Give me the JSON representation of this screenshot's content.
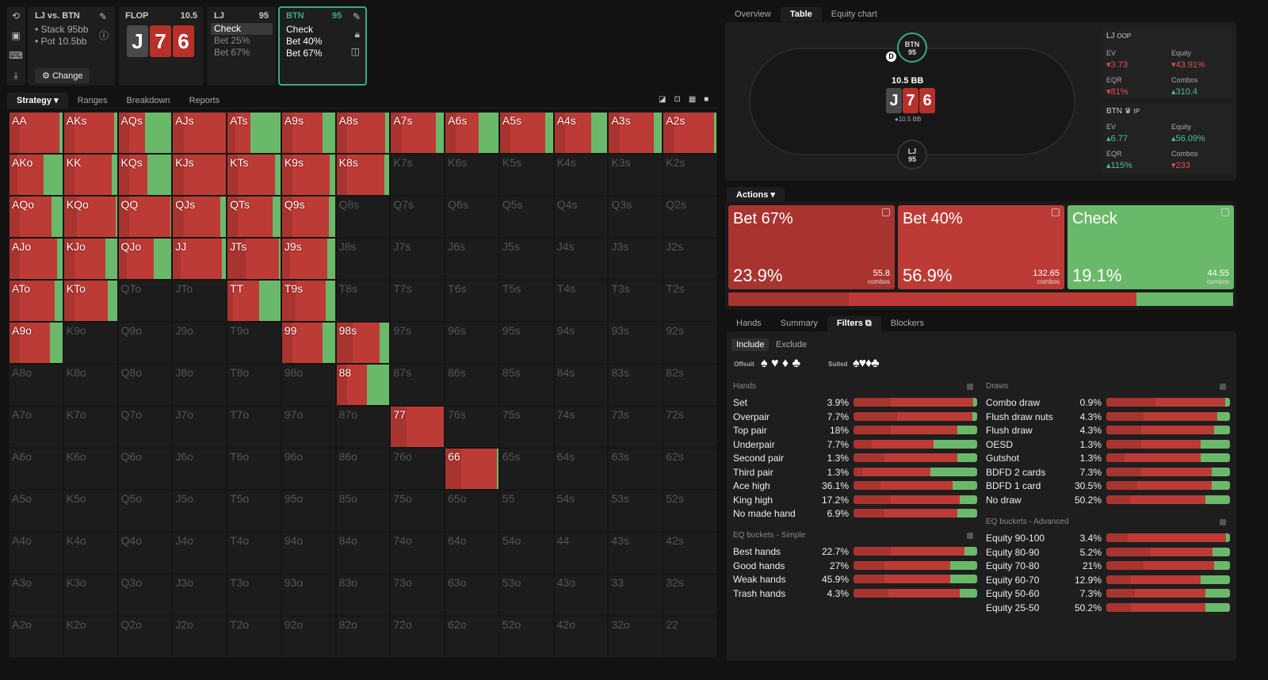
{
  "toolbar": {
    "icons": [
      "reset-icon",
      "save-icon",
      "gamepad-icon",
      "collapse-icon"
    ],
    "glyphs": [
      "⟲",
      "▣",
      "⌨",
      "⤓"
    ]
  },
  "spot": {
    "title": "LJ vs. BTN",
    "stack": "• Stack 95bb",
    "pot": "• Pot 10.5bb",
    "change": "Change",
    "gear": "⚙"
  },
  "flop": {
    "label": "FLOP",
    "pot": "10.5",
    "cards": [
      {
        "rank": "J",
        "suit": "spade",
        "color": "#4a4a4a"
      },
      {
        "rank": "7",
        "suit": "heart",
        "color": "#b8302a"
      },
      {
        "rank": "6",
        "suit": "heart",
        "color": "#b8302a"
      }
    ]
  },
  "lj": {
    "label": "LJ",
    "stack": "95",
    "options": [
      "Check",
      "Bet 25%",
      "Bet 67%"
    ]
  },
  "btn": {
    "label": "BTN",
    "stack": "95",
    "options": [
      "Check",
      "Bet 40%",
      "Bet 67%"
    ]
  },
  "left_tabs": [
    "Strategy ▾",
    "Ranges",
    "Breakdown",
    "Reports"
  ],
  "right_tabs": [
    "Overview",
    "Table",
    "Equity chart"
  ],
  "table": {
    "btn_seat": "BTN",
    "btn_stack": "95",
    "dealer": "D",
    "pot": "10.5 BB",
    "chips": "10.5 BB",
    "lj_seat": "LJ",
    "lj_stack": "95"
  },
  "stats": {
    "oop": {
      "title": "LJ",
      "tag": "OOP",
      "ev_label": "EV",
      "ev": "▾3.73",
      "eq_label": "Equity",
      "eq": "▾43.91%",
      "eqr_label": "EQR",
      "eqr": "▾81%",
      "combos_label": "Combos",
      "combos": "▴310.4"
    },
    "ip": {
      "title": "BTN ♛",
      "tag": "IP",
      "ev_label": "EV",
      "ev": "▴6.77",
      "eq_label": "Equity",
      "eq": "▴56.09%",
      "eqr_label": "EQR",
      "eqr": "▴115%",
      "combos_label": "Combos",
      "combos": "▾233"
    }
  },
  "actions": {
    "tab": "Actions ▾",
    "items": [
      {
        "name": "Bet 67%",
        "pct": "23.9%",
        "combos": "55.8",
        "unit": "combos",
        "color": "#a83430",
        "frac": 0.239
      },
      {
        "name": "Bet 40%",
        "pct": "56.9%",
        "combos": "132.65",
        "unit": "combos",
        "color": "#bd3b36",
        "frac": 0.569
      },
      {
        "name": "Check",
        "pct": "19.1%",
        "combos": "44.55",
        "unit": "combos",
        "color": "#6ab96a",
        "frac": 0.191
      }
    ]
  },
  "bottom_tabs": [
    "Hands",
    "Summary",
    "Filters ⧉",
    "Blockers"
  ],
  "filters": {
    "include": "Include",
    "exclude": "Exclude",
    "offsuit": "Offsuit",
    "offsuit_suits": "♠ ♥ ♦ ♣",
    "suited": "Suited",
    "suited_suits": "♠♥♦♣",
    "hands_title": "Hands",
    "draws_title": "Draws",
    "eq_simple_title": "EQ buckets - Simple",
    "eq_adv_title": "EQ buckets - Advanced",
    "hands": [
      [
        "Set",
        "3.9%",
        0.3,
        0.03
      ],
      [
        "Overpair",
        "7.7%",
        0.35,
        0.04
      ],
      [
        "Top pair",
        "18%",
        0.3,
        0.16
      ],
      [
        "Underpair",
        "7.7%",
        0.15,
        0.35
      ],
      [
        "Second pair",
        "1.3%",
        0.25,
        0.16
      ],
      [
        "Third pair",
        "1.3%",
        0.07,
        0.38
      ],
      [
        "Ace high",
        "36.1%",
        0.22,
        0.2
      ],
      [
        "King high",
        "17.2%",
        0.3,
        0.14
      ],
      [
        "No made hand",
        "6.9%",
        0.25,
        0.16
      ]
    ],
    "eq_simple": [
      [
        "Best hands",
        "22.7%",
        0.3,
        0.1
      ],
      [
        "Good hands",
        "27%",
        0.25,
        0.22
      ],
      [
        "Weak hands",
        "45.9%",
        0.25,
        0.22
      ],
      [
        "Trash hands",
        "4.3%",
        0.28,
        0.14
      ]
    ],
    "draws": [
      [
        "Combo draw",
        "0.9%",
        0.4,
        0.04
      ],
      [
        "Flush draw nuts",
        "4.3%",
        0.3,
        0.1
      ],
      [
        "Flush draw",
        "4.3%",
        0.28,
        0.13
      ],
      [
        "OESD",
        "1.3%",
        0.28,
        0.24
      ],
      [
        "Gutshot",
        "1.3%",
        0.15,
        0.24
      ],
      [
        "BDFD 2 cards",
        "7.3%",
        0.28,
        0.15
      ],
      [
        "BDFD 1 card",
        "30.5%",
        0.25,
        0.15
      ],
      [
        "No draw",
        "50.2%",
        0.2,
        0.2
      ]
    ],
    "eq_adv": [
      [
        "Equity 90-100",
        "3.4%",
        0.17,
        0.03
      ],
      [
        "Equity 80-90",
        "5.2%",
        0.35,
        0.14
      ],
      [
        "Equity 70-80",
        "21%",
        0.3,
        0.13
      ],
      [
        "Equity 60-70",
        "12.9%",
        0.2,
        0.24
      ],
      [
        "Equity 50-60",
        "7.3%",
        0.23,
        0.2
      ],
      [
        "Equity 25-50",
        "50.2%",
        0.2,
        0.2
      ]
    ]
  },
  "grid": {
    "ranks": [
      "A",
      "K",
      "Q",
      "J",
      "T",
      "9",
      "8",
      "7",
      "6",
      "5",
      "4",
      "3",
      "2"
    ],
    "strategy": {
      "AA": [
        0.2,
        0.06
      ],
      "AKs": [
        0.2,
        0.05
      ],
      "AQs": [
        0.2,
        0.5
      ],
      "AJs": [
        0.2,
        0
      ],
      "ATs": [
        0.15,
        0.57
      ],
      "A9s": [
        0.2,
        0.23
      ],
      "A8s": [
        0.2,
        0.08
      ],
      "A7s": [
        0.2,
        0.15
      ],
      "A6s": [
        0.2,
        0.37
      ],
      "A5s": [
        0.2,
        0.15
      ],
      "A4s": [
        0.2,
        0.3
      ],
      "A3s": [
        0.2,
        0.15
      ],
      "A2s": [
        0.2,
        0.05
      ],
      "AKo": [
        0.15,
        0.35
      ],
      "KK": [
        0.2,
        0.1
      ],
      "KQs": [
        0.2,
        0.45
      ],
      "KJs": [
        0.2,
        0
      ],
      "KTs": [
        0.2,
        0.1
      ],
      "K9s": [
        0.2,
        0.1
      ],
      "K8s": [
        0.2,
        0.1
      ],
      "AQo": [
        0.2,
        0.2
      ],
      "KQo": [
        0.25,
        0.02
      ],
      "QQ": [
        0.2,
        0.02
      ],
      "QJs": [
        0.2,
        0.1
      ],
      "QTs": [
        0.2,
        0.15
      ],
      "Q9s": [
        0.2,
        0.12
      ],
      "AJo": [
        0.2,
        0.1
      ],
      "KJo": [
        0.2,
        0.22
      ],
      "QJo": [
        0.15,
        0.33
      ],
      "JJ": [
        0.15,
        0.08
      ],
      "JTs": [
        0.35,
        0.02
      ],
      "J9s": [
        0.15,
        0.14
      ],
      "ATo": [
        0.2,
        0.15
      ],
      "KTo": [
        0.2,
        0.18
      ],
      "TT": [
        0.1,
        0.4
      ],
      "T9s": [
        0.25,
        0.18
      ],
      "A9o": [
        0.2,
        0.23
      ],
      "99": [
        0.2,
        0.24
      ],
      "98s": [
        0.3,
        0.18
      ],
      "88": [
        0.2,
        0.42
      ],
      "77": [
        0.3,
        0
      ],
      "66": [
        0.3,
        0.03
      ]
    }
  }
}
